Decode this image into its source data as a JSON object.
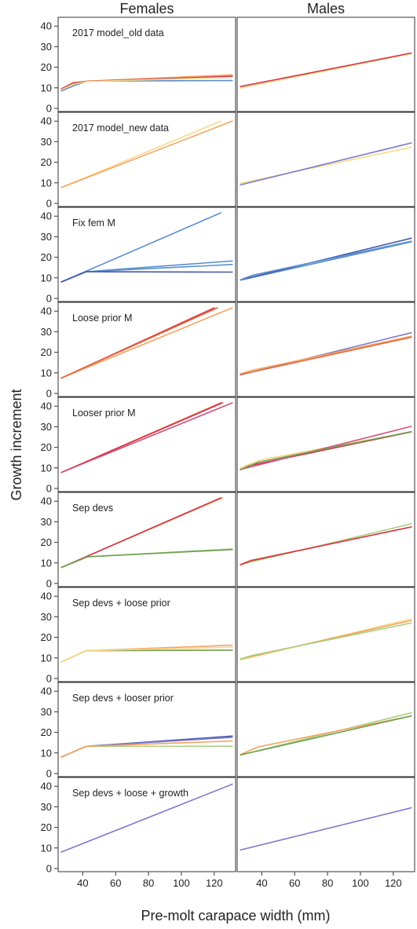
{
  "figure": {
    "column_titles": [
      "Females",
      "Males"
    ],
    "ylabel": "Growth increment",
    "xlabel": "Pre-molt carapace width (mm)"
  },
  "colors": {
    "blue": "#5a8fcf",
    "red": "#d3364a",
    "orange": "#f4a25f",
    "yellow": "#f7d98a",
    "purple": "#7c7ac9",
    "green": "#a8cf7f",
    "dark_orange": "#e46b3e",
    "pink": "#d2507a",
    "dark_green": "#6f9e54",
    "navy": "#4658a8"
  },
  "chart_data": {
    "type": "line",
    "layout": "small multiples, 9 rows x 2 columns",
    "xlim": [
      25,
      133
    ],
    "ylim": [
      0,
      42
    ],
    "x_ticks": [
      40,
      60,
      80,
      100,
      120
    ],
    "y_ticks": [
      0,
      10,
      20,
      30,
      40
    ],
    "rows": [
      {
        "label": "2017 model_old data",
        "females": [
          {
            "color": "blue",
            "x": [
              27,
              35,
              43,
              131
            ],
            "y": [
              8.5,
              11.2,
              13.3,
              13.5
            ]
          },
          {
            "color": "orange",
            "x": [
              27,
              34,
              43,
              131
            ],
            "y": [
              9.3,
              12.5,
              13.3,
              16.3
            ]
          },
          {
            "color": "red",
            "x": [
              27,
              34,
              43,
              131
            ],
            "y": [
              9.5,
              12.3,
              13.2,
              15.6
            ]
          },
          {
            "color": "yellow",
            "x": [
              27,
              34,
              43,
              131
            ],
            "y": [
              9.0,
              11.7,
              13.1,
              15.1
            ]
          }
        ],
        "males": [
          {
            "color": "yellow",
            "x": [
              27,
              131
            ],
            "y": [
              9.9,
              26.6
            ]
          },
          {
            "color": "red",
            "x": [
              27,
              131
            ],
            "y": [
              10.6,
              26.9
            ]
          }
        ]
      },
      {
        "label": "2017 model_new data",
        "females": [
          {
            "color": "yellow",
            "x": [
              27,
              124
            ],
            "y": [
              7.7,
              40.0
            ]
          },
          {
            "color": "orange",
            "x": [
              27,
              131
            ],
            "y": [
              7.7,
              40.0
            ]
          }
        ],
        "males": [
          {
            "color": "yellow",
            "x": [
              27,
              131
            ],
            "y": [
              9.8,
              27.3
            ]
          },
          {
            "color": "purple",
            "x": [
              27,
              131
            ],
            "y": [
              9.0,
              29.4
            ]
          }
        ]
      },
      {
        "label": "Fix fem M",
        "females": [
          {
            "color": "blue",
            "x": [
              27,
              124
            ],
            "y": [
              8.0,
              41.6
            ]
          },
          {
            "color": "blue",
            "x": [
              27,
              42,
              131
            ],
            "y": [
              8.0,
              13.0,
              18.2
            ]
          },
          {
            "color": "blue",
            "x": [
              27,
              42,
              131
            ],
            "y": [
              8.0,
              13.0,
              16.5
            ]
          },
          {
            "color": "navy",
            "x": [
              27,
              42,
              131
            ],
            "y": [
              8.0,
              13.0,
              12.8
            ]
          }
        ],
        "males": [
          {
            "color": "blue",
            "x": [
              27,
              131
            ],
            "y": [
              8.9,
              27.5
            ]
          },
          {
            "color": "navy",
            "x": [
              27,
              131
            ],
            "y": [
              9.0,
              29.3
            ]
          },
          {
            "color": "blue",
            "x": [
              27,
              34,
              131
            ],
            "y": [
              9.0,
              11.2,
              27.8
            ]
          }
        ]
      },
      {
        "label": "Loose prior M",
        "females": [
          {
            "color": "red",
            "x": [
              27,
              120
            ],
            "y": [
              7.5,
              41.6
            ]
          },
          {
            "color": "orange",
            "x": [
              27,
              131
            ],
            "y": [
              7.5,
              41.6
            ]
          },
          {
            "color": "dark_orange",
            "x": [
              27,
              122
            ],
            "y": [
              7.5,
              41.6
            ]
          }
        ],
        "males": [
          {
            "color": "purple",
            "x": [
              27,
              131
            ],
            "y": [
              9.0,
              29.5
            ]
          },
          {
            "color": "orange",
            "x": [
              27,
              34,
              131
            ],
            "y": [
              9.5,
              11.2,
              27.8
            ]
          },
          {
            "color": "dark_orange",
            "x": [
              27,
              131
            ],
            "y": [
              9.2,
              27.3
            ]
          }
        ]
      },
      {
        "label": "Looser prior M",
        "females": [
          {
            "color": "dark_orange",
            "x": [
              27,
              124
            ],
            "y": [
              7.8,
              41.6
            ]
          },
          {
            "color": "red",
            "x": [
              27,
              125
            ],
            "y": [
              7.8,
              41.6
            ]
          },
          {
            "color": "pink",
            "x": [
              27,
              131
            ],
            "y": [
              7.8,
              41.6
            ]
          }
        ],
        "males": [
          {
            "color": "yellow",
            "x": [
              27,
              40,
              131
            ],
            "y": [
              10.0,
              14.0,
              27.5
            ]
          },
          {
            "color": "red",
            "x": [
              27,
              32,
              131
            ],
            "y": [
              9.0,
              11.0,
              27.5
            ]
          },
          {
            "color": "pink",
            "x": [
              27,
              131
            ],
            "y": [
              9.2,
              30.2
            ]
          },
          {
            "color": "dark_green",
            "x": [
              27,
              38,
              131
            ],
            "y": [
              9.2,
              12.8,
              27.6
            ]
          }
        ]
      },
      {
        "label": "Sep devs",
        "females": [
          {
            "color": "orange",
            "x": [
              27,
              125
            ],
            "y": [
              7.8,
              41.6
            ]
          },
          {
            "color": "red",
            "x": [
              27,
              124
            ],
            "y": [
              7.8,
              41.6
            ]
          },
          {
            "color": "green",
            "x": [
              27,
              43,
              131
            ],
            "y": [
              7.8,
              13.0,
              16.8
            ]
          },
          {
            "color": "dark_green",
            "x": [
              27,
              43,
              131
            ],
            "y": [
              7.8,
              13.0,
              16.5
            ]
          }
        ],
        "males": [
          {
            "color": "green",
            "x": [
              27,
              131
            ],
            "y": [
              9.2,
              29.0
            ]
          },
          {
            "color": "orange",
            "x": [
              27,
              33,
              131
            ],
            "y": [
              9.2,
              11.2,
              27.5
            ]
          },
          {
            "color": "red",
            "x": [
              27,
              33,
              131
            ],
            "y": [
              9.0,
              11.0,
              27.5
            ]
          }
        ]
      },
      {
        "label": "Sep devs + loose prior",
        "females": [
          {
            "color": "dark_green",
            "x": [
              27,
              42,
              131
            ],
            "y": [
              8.0,
              13.5,
              13.8
            ]
          },
          {
            "color": "orange",
            "x": [
              27,
              42,
              131
            ],
            "y": [
              8.0,
              13.5,
              16.2
            ]
          },
          {
            "color": "yellow",
            "x": [
              27,
              42,
              131
            ],
            "y": [
              8.0,
              13.5,
              15.2
            ]
          }
        ],
        "males": [
          {
            "color": "yellow",
            "x": [
              27,
              131
            ],
            "y": [
              9.0,
              29.0
            ]
          },
          {
            "color": "orange",
            "x": [
              27,
              131
            ],
            "y": [
              9.5,
              28.2
            ]
          },
          {
            "color": "green",
            "x": [
              27,
              34,
              131
            ],
            "y": [
              9.5,
              11.2,
              27.0
            ]
          }
        ]
      },
      {
        "label": "Sep devs + looser prior",
        "females": [
          {
            "color": "navy",
            "x": [
              27,
              42,
              131
            ],
            "y": [
              8.0,
              13.2,
              18.2
            ]
          },
          {
            "color": "purple",
            "x": [
              27,
              42,
              131
            ],
            "y": [
              8.0,
              13.2,
              17.6
            ]
          },
          {
            "color": "green",
            "x": [
              27,
              42,
              131
            ],
            "y": [
              8.0,
              13.2,
              13.3
            ]
          },
          {
            "color": "orange",
            "x": [
              27,
              42,
              131
            ],
            "y": [
              8.0,
              13.2,
              15.8
            ]
          }
        ],
        "males": [
          {
            "color": "green",
            "x": [
              27,
              131
            ],
            "y": [
              9.0,
              29.5
            ]
          },
          {
            "color": "orange",
            "x": [
              27,
              38,
              131
            ],
            "y": [
              9.2,
              13.0,
              28.0
            ]
          },
          {
            "color": "dark_green",
            "x": [
              27,
              131
            ],
            "y": [
              9.0,
              28.0
            ]
          }
        ]
      },
      {
        "label": "Sep devs + loose + growth",
        "females": [
          {
            "color": "purple",
            "x": [
              27,
              131
            ],
            "y": [
              8.0,
              41.0
            ]
          }
        ],
        "males": [
          {
            "color": "purple",
            "x": [
              27,
              131
            ],
            "y": [
              9.0,
              29.5
            ]
          }
        ]
      }
    ]
  }
}
